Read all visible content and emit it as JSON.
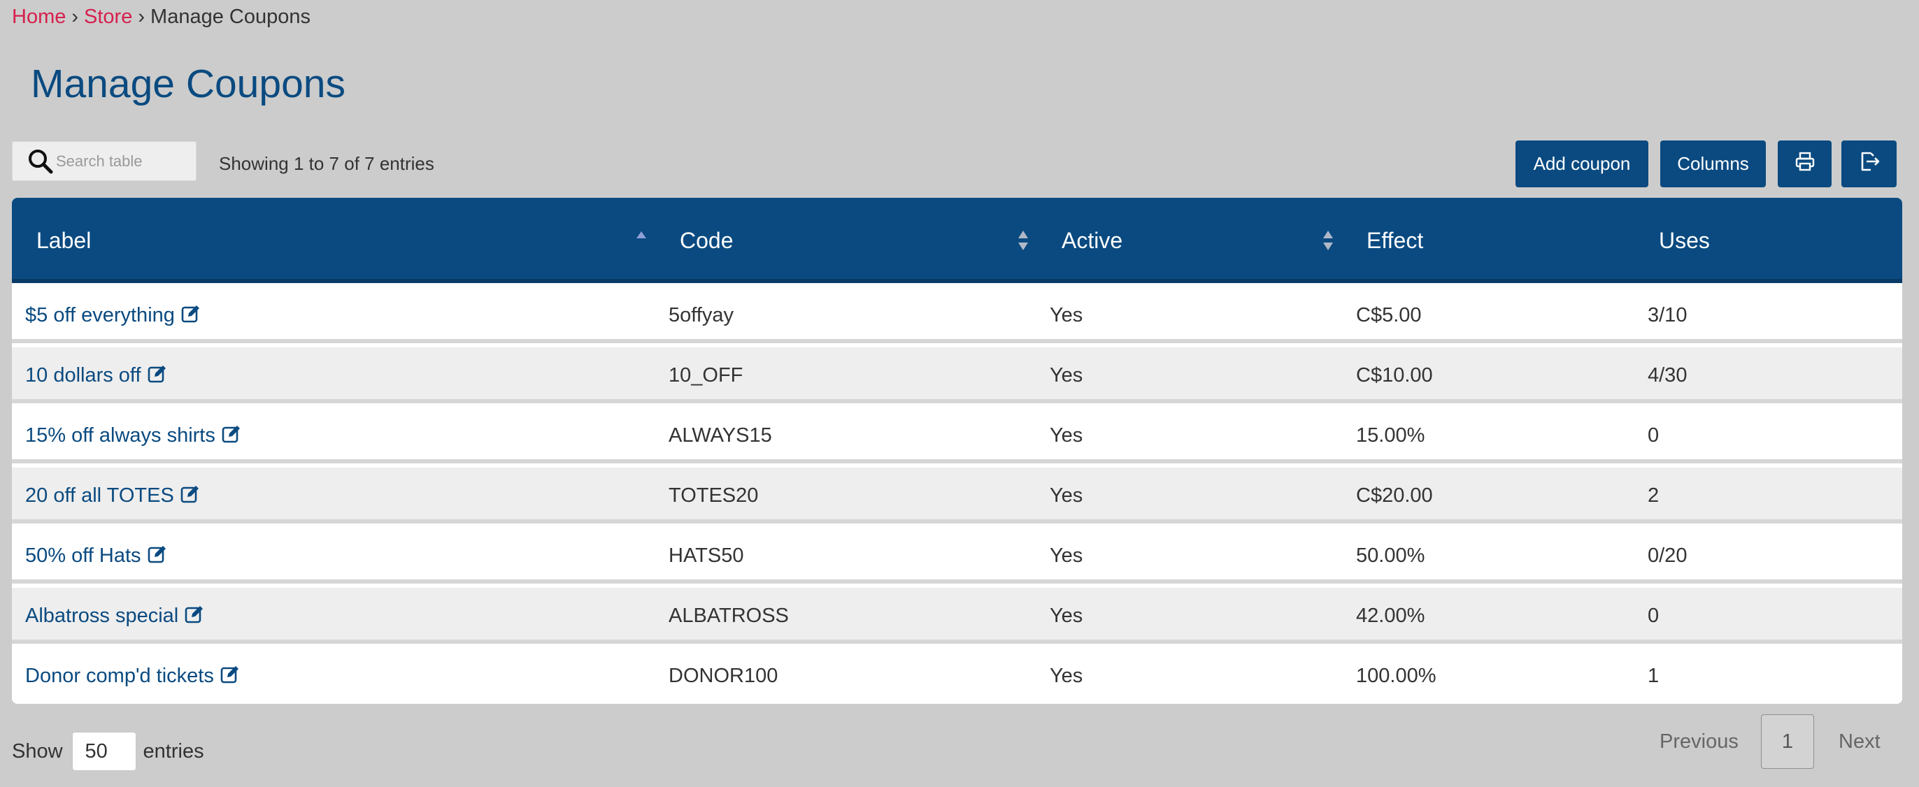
{
  "breadcrumb": {
    "home": "Home",
    "store": "Store",
    "current": "Manage Coupons",
    "separator": "›"
  },
  "page_title": "Manage Coupons",
  "search": {
    "placeholder": "Search table",
    "value": ""
  },
  "entries_info": "Showing 1 to 7 of 7 entries",
  "toolbar": {
    "add_coupon": "Add coupon",
    "columns": "Columns",
    "print_icon": "printer-icon",
    "export_icon": "export-icon"
  },
  "table": {
    "columns": [
      "Label",
      "Code",
      "Active",
      "Effect",
      "Uses"
    ],
    "rows": [
      {
        "label": "$5 off everything",
        "code": "5offyay",
        "active": "Yes",
        "effect": "C$5.00",
        "uses": "3/10"
      },
      {
        "label": "10 dollars off",
        "code": "10_OFF",
        "active": "Yes",
        "effect": "C$10.00",
        "uses": "4/30"
      },
      {
        "label": "15% off always shirts",
        "code": "ALWAYS15",
        "active": "Yes",
        "effect": "15.00%",
        "uses": "0"
      },
      {
        "label": "20 off all TOTES",
        "code": "TOTES20",
        "active": "Yes",
        "effect": "C$20.00",
        "uses": "2"
      },
      {
        "label": "50% off Hats",
        "code": "HATS50",
        "active": "Yes",
        "effect": "50.00%",
        "uses": "0/20"
      },
      {
        "label": "Albatross special",
        "code": "ALBATROSS",
        "active": "Yes",
        "effect": "42.00%",
        "uses": "0"
      },
      {
        "label": "Donor comp'd tickets",
        "code": "DONOR100",
        "active": "Yes",
        "effect": "100.00%",
        "uses": "1"
      }
    ]
  },
  "footer": {
    "show_label": "Show",
    "page_size": "50",
    "entries_label": "entries",
    "previous": "Previous",
    "current_page": "1",
    "next": "Next"
  },
  "colors": {
    "primary": "#0a4a80",
    "link_red": "#d6204e",
    "background": "#cccccc"
  }
}
